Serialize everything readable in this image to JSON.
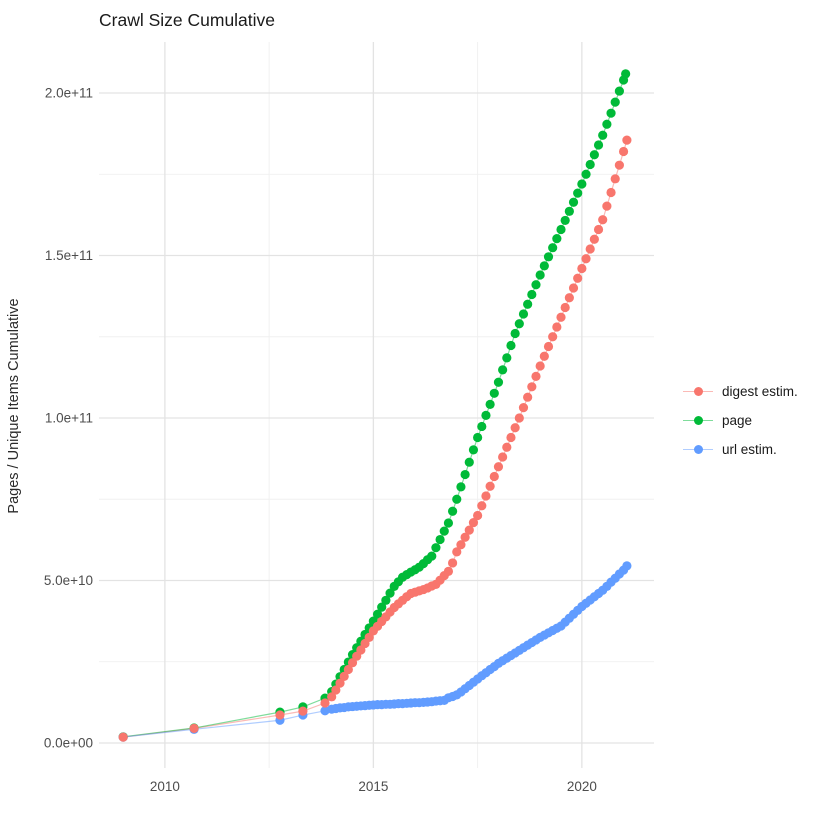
{
  "title": "Crawl Size Cumulative",
  "y_axis_title": "Pages / Unique Items Cumulative",
  "legend": {
    "position": "right",
    "items": [
      {
        "label": "digest estim.",
        "color": "#F8766D"
      },
      {
        "label": "page",
        "color": "#00BA38"
      },
      {
        "label": "url estim.",
        "color": "#619CFF"
      }
    ]
  },
  "colors": {
    "background": "#ffffff",
    "grid_major": "#E3E3E3",
    "grid_minor": "#F0F0F0",
    "tick_label": "#4D4D4D",
    "title_text": "#1a1a1a",
    "axis_title_text": "#2b2b2b",
    "digest": "#F8766D",
    "page": "#00BA38",
    "url": "#619CFF"
  },
  "chart_data": {
    "type": "scatter",
    "title": "Crawl Size Cumulative",
    "xlabel": "",
    "ylabel": "Pages / Unique Items Cumulative",
    "value_unit": "pages (billions, 1e9)",
    "grid": true,
    "legend_position": "right",
    "x_domain": [
      2008.42,
      2021.73
    ],
    "y_domain": [
      -7.7,
      215.7
    ],
    "x_ticks": {
      "values": [
        2010,
        2015,
        2020
      ],
      "labels": [
        "2010",
        "2015",
        "2020"
      ],
      "minor": [
        2012.5,
        2017.5
      ]
    },
    "y_ticks": {
      "values": [
        0,
        50,
        100,
        150,
        200
      ],
      "labels": [
        "0.0e+00",
        "5.0e+10",
        "1.0e+11",
        "1.5e+11",
        "2.0e+11"
      ],
      "minor": [
        25,
        75,
        125,
        175
      ]
    },
    "series": [
      {
        "name": "digest estim.",
        "color": "#F8766D",
        "points": [
          [
            2009.0,
            1.8
          ],
          [
            2010.7,
            4.5
          ],
          [
            2012.76,
            8.6
          ],
          [
            2013.31,
            9.8
          ],
          [
            2013.84,
            12.3
          ],
          [
            2014.0,
            14.2
          ],
          [
            2014.1,
            16.3
          ],
          [
            2014.2,
            18.4
          ],
          [
            2014.3,
            20.5
          ],
          [
            2014.4,
            22.6
          ],
          [
            2014.5,
            24.7
          ],
          [
            2014.6,
            26.7
          ],
          [
            2014.7,
            28.6
          ],
          [
            2014.8,
            30.6
          ],
          [
            2014.9,
            32.5
          ],
          [
            2015.0,
            34.5
          ],
          [
            2015.1,
            35.9
          ],
          [
            2015.2,
            37.4
          ],
          [
            2015.3,
            38.8
          ],
          [
            2015.4,
            40.3
          ],
          [
            2015.5,
            41.7
          ],
          [
            2015.6,
            42.8
          ],
          [
            2015.7,
            43.9
          ],
          [
            2015.8,
            45.0
          ],
          [
            2015.9,
            46.0
          ],
          [
            2016.0,
            46.4
          ],
          [
            2016.1,
            46.8
          ],
          [
            2016.2,
            47.2
          ],
          [
            2016.3,
            47.7
          ],
          [
            2016.4,
            48.3
          ],
          [
            2016.5,
            48.8
          ],
          [
            2016.6,
            50.1
          ],
          [
            2016.7,
            51.5
          ],
          [
            2016.8,
            52.8
          ],
          [
            2016.9,
            55.4
          ],
          [
            2017.0,
            58.8
          ],
          [
            2017.1,
            61.0
          ],
          [
            2017.2,
            63.3
          ],
          [
            2017.3,
            65.5
          ],
          [
            2017.4,
            67.8
          ],
          [
            2017.5,
            70.0
          ],
          [
            2017.6,
            73.0
          ],
          [
            2017.7,
            76.0
          ],
          [
            2017.8,
            79.0
          ],
          [
            2017.9,
            82.0
          ],
          [
            2018.0,
            85.0
          ],
          [
            2018.1,
            88.0
          ],
          [
            2018.2,
            91.0
          ],
          [
            2018.3,
            94.0
          ],
          [
            2018.4,
            97.0
          ],
          [
            2018.5,
            100.0
          ],
          [
            2018.6,
            103.2
          ],
          [
            2018.7,
            106.4
          ],
          [
            2018.8,
            109.6
          ],
          [
            2018.9,
            112.8
          ],
          [
            2019.0,
            116.0
          ],
          [
            2019.1,
            119.0
          ],
          [
            2019.2,
            122.0
          ],
          [
            2019.3,
            125.0
          ],
          [
            2019.4,
            128.0
          ],
          [
            2019.5,
            131.0
          ],
          [
            2019.6,
            134.0
          ],
          [
            2019.7,
            137.0
          ],
          [
            2019.8,
            140.0
          ],
          [
            2019.9,
            143.0
          ],
          [
            2020.0,
            146.0
          ],
          [
            2020.1,
            149.0
          ],
          [
            2020.2,
            152.0
          ],
          [
            2020.3,
            155.0
          ],
          [
            2020.4,
            158.0
          ],
          [
            2020.5,
            161.0
          ],
          [
            2020.6,
            165.2
          ],
          [
            2020.7,
            169.4
          ],
          [
            2020.8,
            173.6
          ],
          [
            2020.9,
            177.8
          ],
          [
            2021.0,
            182.0
          ],
          [
            2021.08,
            185.5
          ]
        ]
      },
      {
        "name": "page",
        "color": "#00BA38",
        "points": [
          [
            2009.0,
            1.9
          ],
          [
            2010.7,
            4.6
          ],
          [
            2012.76,
            9.5
          ],
          [
            2013.31,
            11.1
          ],
          [
            2013.84,
            13.8
          ],
          [
            2014.0,
            15.8
          ],
          [
            2014.1,
            18.1
          ],
          [
            2014.2,
            20.4
          ],
          [
            2014.3,
            22.6
          ],
          [
            2014.4,
            24.9
          ],
          [
            2014.5,
            27.2
          ],
          [
            2014.6,
            29.3
          ],
          [
            2014.7,
            31.3
          ],
          [
            2014.8,
            33.4
          ],
          [
            2014.9,
            35.4
          ],
          [
            2015.0,
            37.5
          ],
          [
            2015.1,
            39.6
          ],
          [
            2015.2,
            41.8
          ],
          [
            2015.3,
            43.9
          ],
          [
            2015.4,
            46.1
          ],
          [
            2015.5,
            48.2
          ],
          [
            2015.6,
            49.6
          ],
          [
            2015.7,
            51.0
          ],
          [
            2015.8,
            51.8
          ],
          [
            2015.9,
            52.6
          ],
          [
            2016.0,
            53.3
          ],
          [
            2016.1,
            54.1
          ],
          [
            2016.2,
            55.2
          ],
          [
            2016.3,
            56.4
          ],
          [
            2016.4,
            57.5
          ],
          [
            2016.5,
            60.1
          ],
          [
            2016.6,
            62.6
          ],
          [
            2016.7,
            65.2
          ],
          [
            2016.8,
            67.7
          ],
          [
            2016.9,
            71.3
          ],
          [
            2017.0,
            75.0
          ],
          [
            2017.1,
            78.8
          ],
          [
            2017.2,
            82.6
          ],
          [
            2017.3,
            86.4
          ],
          [
            2017.4,
            90.2
          ],
          [
            2017.5,
            94.0
          ],
          [
            2017.6,
            97.4
          ],
          [
            2017.7,
            100.8
          ],
          [
            2017.8,
            104.2
          ],
          [
            2017.9,
            107.6
          ],
          [
            2018.0,
            111.0
          ],
          [
            2018.1,
            114.8
          ],
          [
            2018.2,
            118.5
          ],
          [
            2018.3,
            122.3
          ],
          [
            2018.4,
            126.0
          ],
          [
            2018.5,
            129.0
          ],
          [
            2018.6,
            132.0
          ],
          [
            2018.7,
            135.0
          ],
          [
            2018.8,
            138.0
          ],
          [
            2018.9,
            141.0
          ],
          [
            2019.0,
            144.0
          ],
          [
            2019.1,
            146.8
          ],
          [
            2019.2,
            149.6
          ],
          [
            2019.3,
            152.4
          ],
          [
            2019.4,
            155.2
          ],
          [
            2019.5,
            158.0
          ],
          [
            2019.6,
            160.8
          ],
          [
            2019.7,
            163.6
          ],
          [
            2019.8,
            166.4
          ],
          [
            2019.9,
            169.2
          ],
          [
            2020.0,
            172.0
          ],
          [
            2020.1,
            175.0
          ],
          [
            2020.2,
            178.0
          ],
          [
            2020.3,
            181.0
          ],
          [
            2020.4,
            184.0
          ],
          [
            2020.5,
            187.0
          ],
          [
            2020.6,
            190.4
          ],
          [
            2020.7,
            193.8
          ],
          [
            2020.8,
            197.2
          ],
          [
            2020.9,
            200.6
          ],
          [
            2021.0,
            204.0
          ],
          [
            2021.05,
            205.9
          ]
        ]
      },
      {
        "name": "url estim.",
        "color": "#619CFF",
        "points": [
          [
            2009.0,
            1.8
          ],
          [
            2010.7,
            4.2
          ],
          [
            2012.76,
            7.0
          ],
          [
            2013.31,
            8.6
          ],
          [
            2013.84,
            9.9
          ],
          [
            2014.0,
            10.4
          ],
          [
            2014.1,
            10.6
          ],
          [
            2014.2,
            10.8
          ],
          [
            2014.3,
            10.9
          ],
          [
            2014.4,
            11.1
          ],
          [
            2014.5,
            11.2
          ],
          [
            2014.6,
            11.3
          ],
          [
            2014.7,
            11.4
          ],
          [
            2014.8,
            11.5
          ],
          [
            2014.9,
            11.6
          ],
          [
            2015.0,
            11.7
          ],
          [
            2015.1,
            11.8
          ],
          [
            2015.2,
            11.8
          ],
          [
            2015.3,
            11.9
          ],
          [
            2015.4,
            11.9
          ],
          [
            2015.5,
            12.0
          ],
          [
            2015.6,
            12.1
          ],
          [
            2015.7,
            12.1
          ],
          [
            2015.8,
            12.2
          ],
          [
            2015.9,
            12.3
          ],
          [
            2016.0,
            12.4
          ],
          [
            2016.1,
            12.4
          ],
          [
            2016.2,
            12.5
          ],
          [
            2016.3,
            12.6
          ],
          [
            2016.4,
            12.7
          ],
          [
            2016.5,
            12.9
          ],
          [
            2016.6,
            13.0
          ],
          [
            2016.7,
            13.1
          ],
          [
            2016.8,
            13.9
          ],
          [
            2016.9,
            14.3
          ],
          [
            2017.0,
            14.8
          ],
          [
            2017.1,
            15.7
          ],
          [
            2017.2,
            16.7
          ],
          [
            2017.3,
            17.7
          ],
          [
            2017.4,
            18.7
          ],
          [
            2017.5,
            19.7
          ],
          [
            2017.6,
            20.7
          ],
          [
            2017.7,
            21.6
          ],
          [
            2017.8,
            22.6
          ],
          [
            2017.9,
            23.5
          ],
          [
            2018.0,
            24.5
          ],
          [
            2018.1,
            25.3
          ],
          [
            2018.2,
            26.1
          ],
          [
            2018.3,
            26.9
          ],
          [
            2018.4,
            27.7
          ],
          [
            2018.5,
            28.5
          ],
          [
            2018.6,
            29.3
          ],
          [
            2018.7,
            30.1
          ],
          [
            2018.8,
            30.9
          ],
          [
            2018.9,
            31.7
          ],
          [
            2019.0,
            32.5
          ],
          [
            2019.1,
            33.2
          ],
          [
            2019.2,
            33.9
          ],
          [
            2019.3,
            34.6
          ],
          [
            2019.4,
            35.3
          ],
          [
            2019.5,
            36.0
          ],
          [
            2019.6,
            37.2
          ],
          [
            2019.7,
            38.4
          ],
          [
            2019.8,
            39.6
          ],
          [
            2019.9,
            40.8
          ],
          [
            2020.0,
            42.0
          ],
          [
            2020.1,
            43.0
          ],
          [
            2020.2,
            44.0
          ],
          [
            2020.3,
            45.0
          ],
          [
            2020.4,
            46.0
          ],
          [
            2020.5,
            47.0
          ],
          [
            2020.6,
            48.2
          ],
          [
            2020.7,
            49.5
          ],
          [
            2020.8,
            50.7
          ],
          [
            2020.9,
            52.0
          ],
          [
            2021.0,
            53.2
          ],
          [
            2021.08,
            54.5
          ]
        ]
      }
    ]
  }
}
